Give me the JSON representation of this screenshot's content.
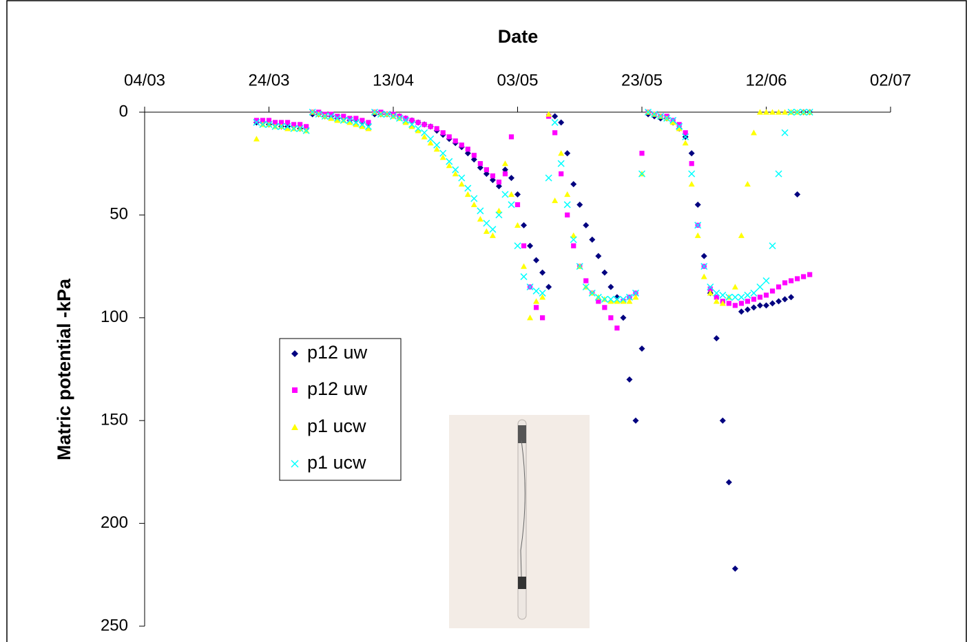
{
  "chart_data": {
    "type": "scatter",
    "title": "Date",
    "y_label": "Matric potential -kPa",
    "xlim": [
      "04/03",
      "02/07"
    ],
    "xticks": [
      "04/03",
      "24/03",
      "13/04",
      "03/05",
      "23/05",
      "12/06",
      "02/07"
    ],
    "ylim": [
      0,
      250
    ],
    "yticks": [
      0,
      50,
      100,
      150,
      200,
      250
    ],
    "y_reversed": true,
    "x_axis_position": "top",
    "legend_position": "left",
    "x": [
      "22/03",
      "23/03",
      "24/03",
      "25/03",
      "26/03",
      "27/03",
      "28/03",
      "29/03",
      "30/03",
      "31/03",
      "01/04",
      "02/04",
      "03/04",
      "04/04",
      "05/04",
      "06/04",
      "07/04",
      "08/04",
      "09/04",
      "10/04",
      "11/04",
      "12/04",
      "13/04",
      "14/04",
      "15/04",
      "16/04",
      "17/04",
      "18/04",
      "19/04",
      "20/04",
      "21/04",
      "22/04",
      "23/04",
      "24/04",
      "25/04",
      "26/04",
      "27/04",
      "28/04",
      "29/04",
      "30/04",
      "01/05",
      "02/05",
      "03/05",
      "04/05",
      "05/05",
      "06/05",
      "07/05",
      "08/05",
      "09/05",
      "10/05",
      "11/05",
      "12/05",
      "13/05",
      "14/05",
      "15/05",
      "16/05",
      "17/05",
      "18/05",
      "19/05",
      "20/05",
      "21/05",
      "22/05",
      "23/05",
      "24/05",
      "25/05",
      "26/05",
      "27/05",
      "28/05",
      "29/05",
      "30/05",
      "31/05",
      "01/06",
      "02/06",
      "03/06",
      "04/06",
      "05/06",
      "06/06",
      "07/06",
      "08/06",
      "09/06",
      "10/06",
      "11/06",
      "12/06",
      "13/06",
      "14/06",
      "15/06",
      "16/06",
      "17/06",
      "18/06",
      "19/06"
    ],
    "series": [
      {
        "name": "p12 uw",
        "color": "#000080",
        "marker": "diamond",
        "values": [
          5,
          5,
          6,
          6,
          7,
          7,
          7,
          8,
          8,
          1,
          1,
          2,
          2,
          3,
          3,
          4,
          4,
          5,
          6,
          1,
          1,
          1,
          1,
          2,
          3,
          4,
          5,
          6,
          7,
          9,
          11,
          13,
          15,
          17,
          20,
          23,
          27,
          30,
          33,
          36,
          28,
          32,
          40,
          55,
          65,
          72,
          78,
          85,
          2,
          5,
          20,
          35,
          45,
          55,
          62,
          70,
          78,
          85,
          90,
          100,
          130,
          150,
          115,
          1,
          2,
          3,
          3,
          5,
          8,
          12,
          20,
          45,
          70,
          88,
          110,
          150,
          180,
          222,
          97,
          96,
          95,
          94,
          94,
          93,
          92,
          91,
          90,
          40,
          0,
          0
        ]
      },
      {
        "name": "p12 uw",
        "color": "#ff00ff",
        "marker": "square",
        "values": [
          4,
          4,
          4,
          5,
          5,
          5,
          6,
          6,
          7,
          0,
          0,
          1,
          1,
          2,
          2,
          3,
          3,
          4,
          5,
          0,
          0,
          1,
          1,
          2,
          3,
          4,
          5,
          6,
          7,
          8,
          10,
          12,
          14,
          16,
          18,
          21,
          25,
          28,
          31,
          34,
          30,
          12,
          45,
          65,
          85,
          95,
          100,
          2,
          10,
          30,
          50,
          65,
          75,
          82,
          88,
          92,
          95,
          100,
          105,
          92,
          90,
          88,
          20,
          0,
          1,
          2,
          2,
          4,
          6,
          10,
          25,
          55,
          75,
          86,
          90,
          92,
          93,
          94,
          93,
          92,
          91,
          90,
          89,
          87,
          85,
          83,
          82,
          81,
          80,
          79
        ]
      },
      {
        "name": "p1 ucw",
        "color": "#ffff00",
        "marker": "triangle",
        "values": [
          13,
          6,
          6,
          7,
          7,
          8,
          8,
          8,
          9,
          0,
          1,
          2,
          3,
          4,
          4,
          5,
          6,
          7,
          8,
          0,
          1,
          1,
          2,
          3,
          5,
          7,
          9,
          12,
          15,
          18,
          22,
          26,
          30,
          35,
          40,
          45,
          52,
          58,
          60,
          48,
          25,
          40,
          55,
          75,
          100,
          92,
          90,
          1,
          43,
          20,
          40,
          60,
          75,
          85,
          88,
          90,
          91,
          92,
          92,
          92,
          92,
          90,
          30,
          0,
          1,
          2,
          3,
          5,
          8,
          15,
          35,
          60,
          80,
          88,
          92,
          93,
          90,
          85,
          60,
          35,
          10,
          0,
          0,
          0,
          0,
          0,
          0,
          0,
          0,
          0
        ]
      },
      {
        "name": "p1 ucw",
        "color": "#00ffff",
        "marker": "cross",
        "values": [
          5,
          6,
          6,
          7,
          7,
          7,
          8,
          8,
          9,
          0,
          1,
          2,
          2,
          3,
          4,
          4,
          5,
          6,
          7,
          0,
          1,
          1,
          2,
          3,
          4,
          6,
          8,
          10,
          13,
          16,
          20,
          24,
          28,
          32,
          37,
          42,
          48,
          54,
          57,
          50,
          40,
          45,
          65,
          80,
          85,
          87,
          88,
          32,
          5,
          25,
          45,
          62,
          75,
          85,
          88,
          90,
          91,
          91,
          91,
          91,
          90,
          88,
          30,
          0,
          1,
          2,
          3,
          4,
          7,
          12,
          30,
          55,
          75,
          85,
          88,
          89,
          90,
          90,
          90,
          89,
          88,
          85,
          82,
          65,
          30,
          10,
          0,
          0,
          0,
          0
        ]
      }
    ]
  }
}
